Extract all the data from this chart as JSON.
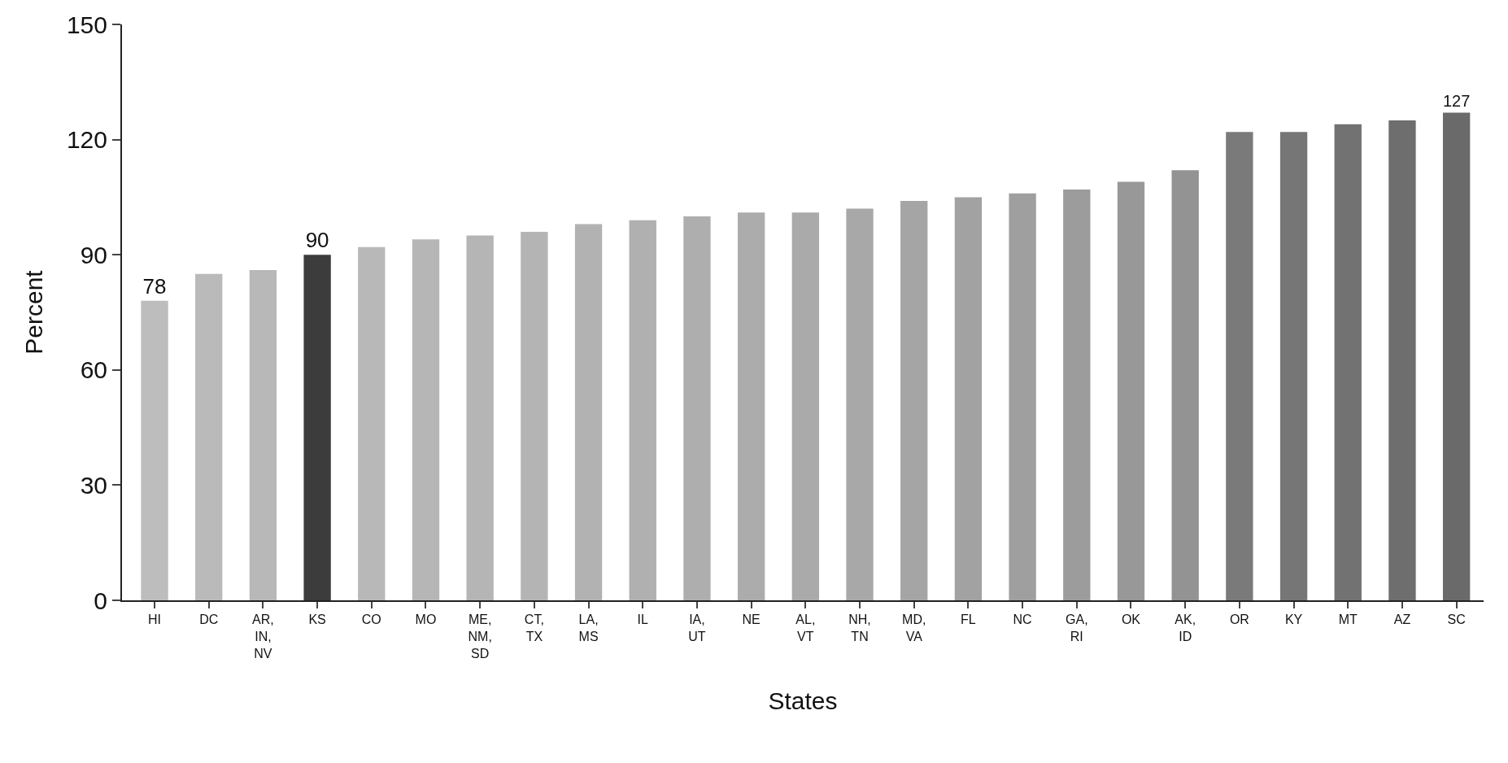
{
  "chart_data": {
    "type": "bar",
    "xlabel": "States",
    "ylabel": "Percent",
    "categories": [
      "HI",
      "DC",
      "AR,\nIN,\nNV",
      "KS",
      "CO",
      "MO",
      "ME,\nNM,\nSD",
      "CT,\nTX",
      "LA,\nMS",
      "IL",
      "IA,\nUT",
      "NE",
      "AL,\nVT",
      "NH,\nTN",
      "MD,\nVA",
      "FL",
      "NC",
      "GA,\nRI",
      "OK",
      "AK,\nID",
      "OR",
      "KY",
      "MT",
      "AZ",
      "SC"
    ],
    "values": [
      78,
      85,
      86,
      90,
      92,
      94,
      95,
      96,
      98,
      99,
      100,
      101,
      101,
      102,
      104,
      105,
      106,
      107,
      109,
      112,
      122,
      122,
      124,
      125,
      127
    ],
    "value_labels": [
      "78",
      null,
      null,
      "90",
      null,
      null,
      null,
      null,
      null,
      null,
      null,
      null,
      null,
      null,
      null,
      null,
      null,
      null,
      null,
      null,
      null,
      null,
      null,
      null,
      "127"
    ],
    "colors": [
      "#bdbdbd",
      "#bababa",
      "#b8b8b8",
      "#3c3c3c",
      "#b8b8b8",
      "#b6b6b6",
      "#b5b5b5",
      "#b4b4b4",
      "#b2b2b2",
      "#b0b0b0",
      "#aeaeae",
      "#acacac",
      "#aaaaaa",
      "#a8a8a8",
      "#a5a5a5",
      "#a2a2a2",
      "#9f9f9f",
      "#9c9c9c",
      "#989898",
      "#939393",
      "#7a7a7a",
      "#767676",
      "#727272",
      "#6e6e6e",
      "#6a6a6a"
    ],
    "ylim": [
      0,
      150
    ],
    "yticks": [
      0,
      30,
      60,
      90,
      120,
      150
    ],
    "grid": false
  }
}
